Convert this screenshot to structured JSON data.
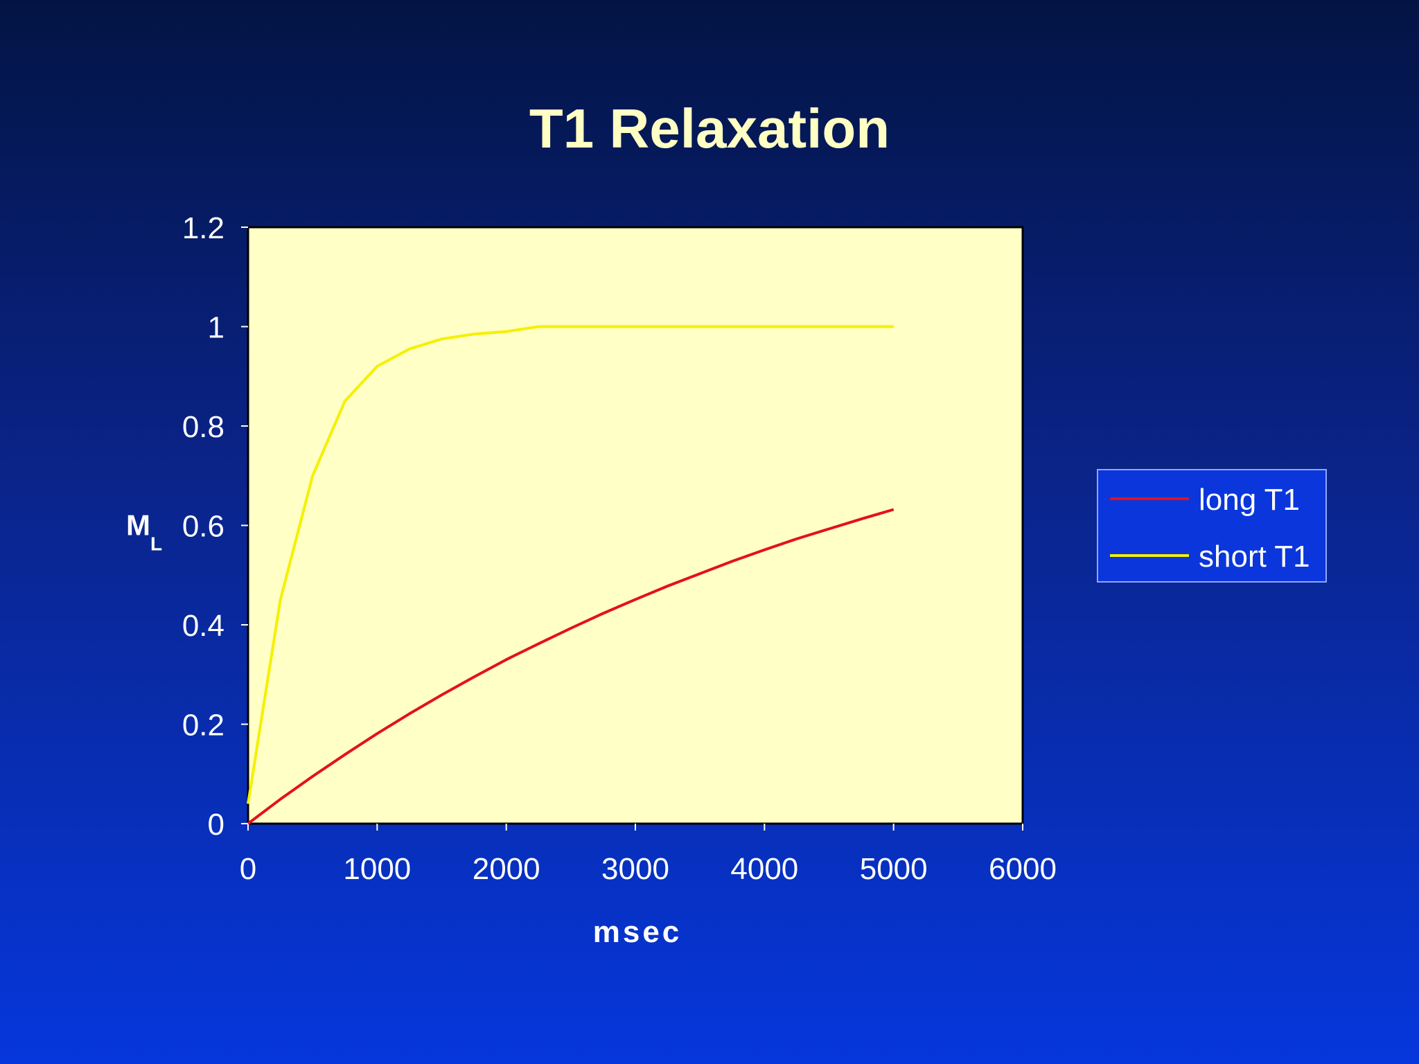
{
  "slide": {
    "title": "T1 Relaxation"
  },
  "colors": {
    "plot_background": "#ffffc6",
    "long_t1": "#e3121a",
    "short_t1": "#f5f000",
    "legend_background": "#0a36dc"
  },
  "chart_data": {
    "type": "line",
    "title": "",
    "xlabel": "msec",
    "ylabel_main": "M",
    "ylabel_sub": "L",
    "xlim": [
      0,
      6000
    ],
    "ylim": [
      0,
      1.2
    ],
    "xticks": [
      "0",
      "1000",
      "2000",
      "3000",
      "4000",
      "5000",
      "6000"
    ],
    "yticks": [
      "0",
      "0.2",
      "0.4",
      "0.6",
      "0.8",
      "1",
      "1.2"
    ],
    "grid": false,
    "legend_position": "right",
    "x": [
      0,
      250,
      500,
      750,
      1000,
      1250,
      1500,
      1750,
      2000,
      2250,
      2500,
      2750,
      3000,
      3250,
      3500,
      3750,
      4000,
      4250,
      4500,
      4750,
      5000
    ],
    "series": [
      {
        "name": "long T1",
        "values": [
          0,
          0.049,
          0.095,
          0.139,
          0.181,
          0.221,
          0.259,
          0.295,
          0.33,
          0.362,
          0.393,
          0.423,
          0.451,
          0.478,
          0.503,
          0.528,
          0.551,
          0.573,
          0.593,
          0.613,
          0.632
        ]
      },
      {
        "name": "short T1",
        "values": [
          0.04,
          0.45,
          0.7,
          0.85,
          0.92,
          0.955,
          0.975,
          0.985,
          0.99,
          1.0,
          1.0,
          1.0,
          1.0,
          1.0,
          1.0,
          1.0,
          1.0,
          1.0,
          1.0,
          1.0,
          1.0
        ]
      }
    ]
  }
}
